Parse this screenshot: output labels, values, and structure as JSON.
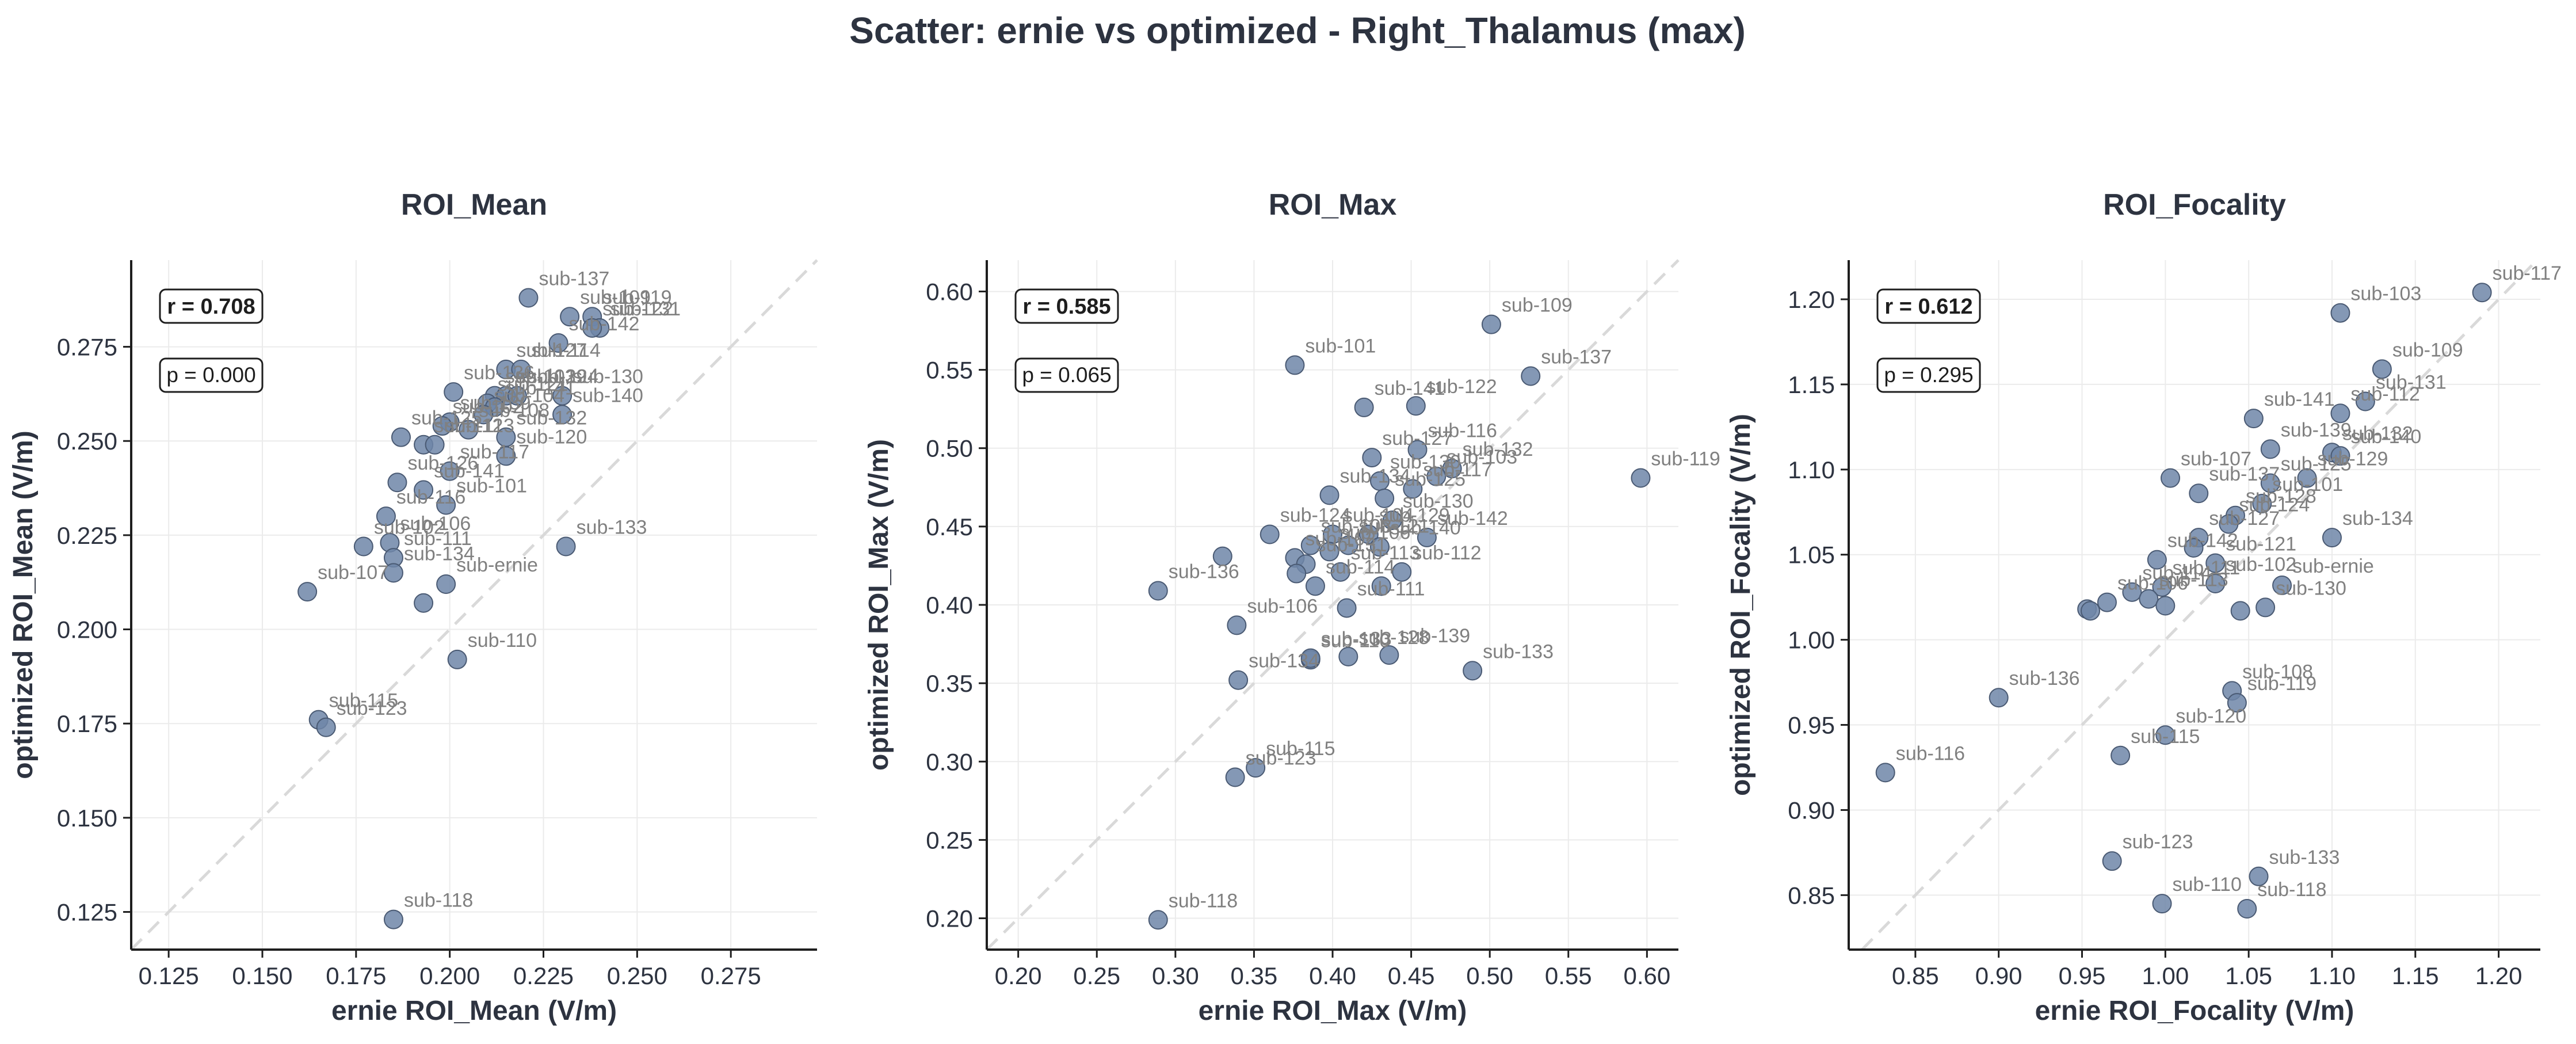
{
  "title": "Scatter: ernie vs optimized - Right_Thalamus (max)",
  "colors": {
    "point": "#6f86a8",
    "point_edge": "#4a5a73",
    "identity": "#d9d9d9",
    "grid": "#ebebeb",
    "text": "#2d3340",
    "label": "#808080"
  },
  "chart_data": [
    {
      "type": "scatter",
      "title": "ROI_Mean",
      "xlabel": "ernie ROI_Mean (V/m)",
      "ylabel": "optimized ROI_Mean (V/m)",
      "xlim": [
        0.115,
        0.298
      ],
      "ylim": [
        0.115,
        0.298
      ],
      "xticks": [
        0.125,
        0.15,
        0.175,
        0.2,
        0.225,
        0.25,
        0.275
      ],
      "yticks": [
        0.125,
        0.15,
        0.175,
        0.2,
        0.225,
        0.25,
        0.275
      ],
      "tick_format": 3,
      "r_text": "r = 0.708",
      "p_text": "p = 0.000",
      "points": [
        {
          "x": 0.221,
          "y": 0.288,
          "label": "sub-137"
        },
        {
          "x": 0.232,
          "y": 0.283,
          "label": "sub-109"
        },
        {
          "x": 0.238,
          "y": 0.283,
          "label": "sub-119"
        },
        {
          "x": 0.24,
          "y": 0.28,
          "label": "sub-131"
        },
        {
          "x": 0.238,
          "y": 0.28,
          "label": "sub-122"
        },
        {
          "x": 0.229,
          "y": 0.276,
          "label": "sub-142"
        },
        {
          "x": 0.215,
          "y": 0.269,
          "label": "sub-127"
        },
        {
          "x": 0.219,
          "y": 0.269,
          "label": "sub-114"
        },
        {
          "x": 0.23,
          "y": 0.262,
          "label": "sub-130"
        },
        {
          "x": 0.201,
          "y": 0.263,
          "label": "sub-136"
        },
        {
          "x": 0.212,
          "y": 0.262,
          "label": "sub-103"
        },
        {
          "x": 0.215,
          "y": 0.262,
          "label": "sub-129"
        },
        {
          "x": 0.218,
          "y": 0.262,
          "label": "sub-124"
        },
        {
          "x": 0.21,
          "y": 0.26,
          "label": "sub-121"
        },
        {
          "x": 0.212,
          "y": 0.259,
          "label": "sub-141"
        },
        {
          "x": 0.23,
          "y": 0.257,
          "label": "sub-140"
        },
        {
          "x": 0.209,
          "y": 0.257,
          "label": "sub-104"
        },
        {
          "x": 0.2,
          "y": 0.255,
          "label": "sub-139"
        },
        {
          "x": 0.198,
          "y": 0.254,
          "label": "sub-102"
        },
        {
          "x": 0.205,
          "y": 0.253,
          "label": "sub-108"
        },
        {
          "x": 0.215,
          "y": 0.251,
          "label": "sub-132"
        },
        {
          "x": 0.187,
          "y": 0.251,
          "label": "sub-125"
        },
        {
          "x": 0.193,
          "y": 0.249,
          "label": "sub-112"
        },
        {
          "x": 0.196,
          "y": 0.249,
          "label": "sub-113"
        },
        {
          "x": 0.215,
          "y": 0.246,
          "label": "sub-120"
        },
        {
          "x": 0.2,
          "y": 0.242,
          "label": "sub-117"
        },
        {
          "x": 0.186,
          "y": 0.239,
          "label": "sub-126"
        },
        {
          "x": 0.193,
          "y": 0.237,
          "label": "sub-141"
        },
        {
          "x": 0.199,
          "y": 0.233,
          "label": "sub-101"
        },
        {
          "x": 0.183,
          "y": 0.23,
          "label": "sub-116"
        },
        {
          "x": 0.177,
          "y": 0.222,
          "label": "sub-102"
        },
        {
          "x": 0.184,
          "y": 0.223,
          "label": "sub-106"
        },
        {
          "x": 0.185,
          "y": 0.219,
          "label": "sub-111"
        },
        {
          "x": 0.231,
          "y": 0.222,
          "label": "sub-133"
        },
        {
          "x": 0.185,
          "y": 0.215,
          "label": "sub-134"
        },
        {
          "x": 0.162,
          "y": 0.21,
          "label": "sub-107"
        },
        {
          "x": 0.199,
          "y": 0.212,
          "label": "sub-ernie"
        },
        {
          "x": 0.193,
          "y": 0.207,
          "label": ""
        },
        {
          "x": 0.202,
          "y": 0.192,
          "label": "sub-110"
        },
        {
          "x": 0.165,
          "y": 0.176,
          "label": "sub-115"
        },
        {
          "x": 0.167,
          "y": 0.174,
          "label": "sub-123"
        },
        {
          "x": 0.185,
          "y": 0.123,
          "label": "sub-118"
        }
      ]
    },
    {
      "type": "scatter",
      "title": "ROI_Max",
      "xlabel": "ernie ROI_Max (V/m)",
      "ylabel": "optimized ROI_Max (V/m)",
      "xlim": [
        0.18,
        0.62
      ],
      "ylim": [
        0.18,
        0.62
      ],
      "xticks": [
        0.2,
        0.25,
        0.3,
        0.35,
        0.4,
        0.45,
        0.5,
        0.55,
        0.6
      ],
      "yticks": [
        0.2,
        0.25,
        0.3,
        0.35,
        0.4,
        0.45,
        0.5,
        0.55,
        0.6
      ],
      "tick_format": 2,
      "r_text": "r = 0.585",
      "p_text": "p = 0.065",
      "points": [
        {
          "x": 0.501,
          "y": 0.579,
          "label": "sub-109"
        },
        {
          "x": 0.376,
          "y": 0.553,
          "label": "sub-101"
        },
        {
          "x": 0.526,
          "y": 0.546,
          "label": "sub-137"
        },
        {
          "x": 0.42,
          "y": 0.526,
          "label": "sub-141"
        },
        {
          "x": 0.453,
          "y": 0.527,
          "label": "sub-122"
        },
        {
          "x": 0.454,
          "y": 0.499,
          "label": "sub-116"
        },
        {
          "x": 0.425,
          "y": 0.494,
          "label": "sub-127"
        },
        {
          "x": 0.596,
          "y": 0.481,
          "label": "sub-119"
        },
        {
          "x": 0.476,
          "y": 0.487,
          "label": "sub-132"
        },
        {
          "x": 0.466,
          "y": 0.482,
          "label": "sub-103"
        },
        {
          "x": 0.43,
          "y": 0.479,
          "label": "sub-130"
        },
        {
          "x": 0.451,
          "y": 0.474,
          "label": "sub-117"
        },
        {
          "x": 0.398,
          "y": 0.47,
          "label": "sub-134"
        },
        {
          "x": 0.433,
          "y": 0.468,
          "label": "sub-125"
        },
        {
          "x": 0.438,
          "y": 0.454,
          "label": "sub-130"
        },
        {
          "x": 0.46,
          "y": 0.443,
          "label": "sub-142"
        },
        {
          "x": 0.36,
          "y": 0.445,
          "label": "sub-124"
        },
        {
          "x": 0.4,
          "y": 0.445,
          "label": "sub-104"
        },
        {
          "x": 0.423,
          "y": 0.445,
          "label": "sub-129"
        },
        {
          "x": 0.386,
          "y": 0.438,
          "label": "sub-108"
        },
        {
          "x": 0.41,
          "y": 0.438,
          "label": "sub-121"
        },
        {
          "x": 0.43,
          "y": 0.437,
          "label": "sub-140"
        },
        {
          "x": 0.376,
          "y": 0.43,
          "label": "sub-102"
        },
        {
          "x": 0.33,
          "y": 0.431,
          "label": ""
        },
        {
          "x": 0.398,
          "y": 0.434,
          "label": "sub-106"
        },
        {
          "x": 0.383,
          "y": 0.426,
          "label": "sub-131"
        },
        {
          "x": 0.405,
          "y": 0.421,
          "label": "sub-113"
        },
        {
          "x": 0.444,
          "y": 0.421,
          "label": "sub-112"
        },
        {
          "x": 0.377,
          "y": 0.42,
          "label": ""
        },
        {
          "x": 0.389,
          "y": 0.412,
          "label": "sub-114"
        },
        {
          "x": 0.431,
          "y": 0.412,
          "label": ""
        },
        {
          "x": 0.289,
          "y": 0.409,
          "label": "sub-136"
        },
        {
          "x": 0.409,
          "y": 0.398,
          "label": "sub-111"
        },
        {
          "x": 0.339,
          "y": 0.387,
          "label": "sub-106"
        },
        {
          "x": 0.436,
          "y": 0.368,
          "label": "sub-139"
        },
        {
          "x": 0.386,
          "y": 0.365,
          "label": "sub-110"
        },
        {
          "x": 0.41,
          "y": 0.367,
          "label": "sub-128"
        },
        {
          "x": 0.386,
          "y": 0.366,
          "label": "sub-133"
        },
        {
          "x": 0.34,
          "y": 0.352,
          "label": "sub-134"
        },
        {
          "x": 0.489,
          "y": 0.358,
          "label": "sub-133"
        },
        {
          "x": 0.351,
          "y": 0.296,
          "label": "sub-115"
        },
        {
          "x": 0.338,
          "y": 0.29,
          "label": "sub-123"
        },
        {
          "x": 0.289,
          "y": 0.199,
          "label": "sub-118"
        }
      ]
    },
    {
      "type": "scatter",
      "title": "ROI_Focality",
      "xlabel": "ernie ROI_Focality (V/m)",
      "ylabel": "optimized ROI_Focality (V/m)",
      "xlim": [
        0.81,
        1.225
      ],
      "ylim": [
        0.818,
        1.223
      ],
      "xticks": [
        0.85,
        0.9,
        0.95,
        1.0,
        1.05,
        1.1,
        1.15,
        1.2
      ],
      "yticks": [
        0.85,
        0.9,
        0.95,
        1.0,
        1.05,
        1.1,
        1.15,
        1.2
      ],
      "tick_format": 2,
      "r_text": "r = 0.612",
      "p_text": "p = 0.295",
      "points": [
        {
          "x": 1.19,
          "y": 1.204,
          "label": "sub-117"
        },
        {
          "x": 1.105,
          "y": 1.192,
          "label": "sub-103"
        },
        {
          "x": 1.13,
          "y": 1.159,
          "label": "sub-109"
        },
        {
          "x": 1.12,
          "y": 1.14,
          "label": "sub-131"
        },
        {
          "x": 1.105,
          "y": 1.133,
          "label": "sub-112"
        },
        {
          "x": 1.053,
          "y": 1.13,
          "label": "sub-141"
        },
        {
          "x": 1.063,
          "y": 1.112,
          "label": "sub-139"
        },
        {
          "x": 1.1,
          "y": 1.11,
          "label": "sub-132"
        },
        {
          "x": 1.105,
          "y": 1.108,
          "label": "sub-140"
        },
        {
          "x": 1.003,
          "y": 1.095,
          "label": "sub-107"
        },
        {
          "x": 1.085,
          "y": 1.095,
          "label": "sub-129"
        },
        {
          "x": 1.063,
          "y": 1.092,
          "label": "sub-125"
        },
        {
          "x": 1.02,
          "y": 1.086,
          "label": "sub-137"
        },
        {
          "x": 1.058,
          "y": 1.08,
          "label": "sub-101"
        },
        {
          "x": 1.042,
          "y": 1.073,
          "label": "sub-128"
        },
        {
          "x": 1.038,
          "y": 1.068,
          "label": "sub-124"
        },
        {
          "x": 1.1,
          "y": 1.06,
          "label": "sub-134"
        },
        {
          "x": 1.02,
          "y": 1.06,
          "label": "sub-127"
        },
        {
          "x": 1.017,
          "y": 1.054,
          "label": ""
        },
        {
          "x": 0.995,
          "y": 1.047,
          "label": "sub-142"
        },
        {
          "x": 1.03,
          "y": 1.045,
          "label": "sub-121"
        },
        {
          "x": 1.03,
          "y": 1.033,
          "label": "sub-102"
        },
        {
          "x": 1.07,
          "y": 1.032,
          "label": "sub-ernie"
        },
        {
          "x": 0.998,
          "y": 1.031,
          "label": "sub-111"
        },
        {
          "x": 0.98,
          "y": 1.028,
          "label": "sub-114"
        },
        {
          "x": 0.99,
          "y": 1.024,
          "label": "sub-113"
        },
        {
          "x": 0.965,
          "y": 1.022,
          "label": "sub-106"
        },
        {
          "x": 1.045,
          "y": 1.017,
          "label": ""
        },
        {
          "x": 1.06,
          "y": 1.019,
          "label": "sub-130"
        },
        {
          "x": 1.0,
          "y": 1.02,
          "label": ""
        },
        {
          "x": 0.953,
          "y": 1.018,
          "label": ""
        },
        {
          "x": 0.955,
          "y": 1.017,
          "label": ""
        },
        {
          "x": 0.9,
          "y": 0.966,
          "label": "sub-136"
        },
        {
          "x": 1.04,
          "y": 0.97,
          "label": "sub-108"
        },
        {
          "x": 1.043,
          "y": 0.963,
          "label": "sub-119"
        },
        {
          "x": 1.0,
          "y": 0.944,
          "label": "sub-120"
        },
        {
          "x": 0.973,
          "y": 0.932,
          "label": "sub-115"
        },
        {
          "x": 0.832,
          "y": 0.922,
          "label": "sub-116"
        },
        {
          "x": 0.968,
          "y": 0.87,
          "label": "sub-123"
        },
        {
          "x": 1.056,
          "y": 0.861,
          "label": "sub-133"
        },
        {
          "x": 0.998,
          "y": 0.845,
          "label": "sub-110"
        },
        {
          "x": 1.049,
          "y": 0.842,
          "label": "sub-118"
        }
      ]
    }
  ]
}
